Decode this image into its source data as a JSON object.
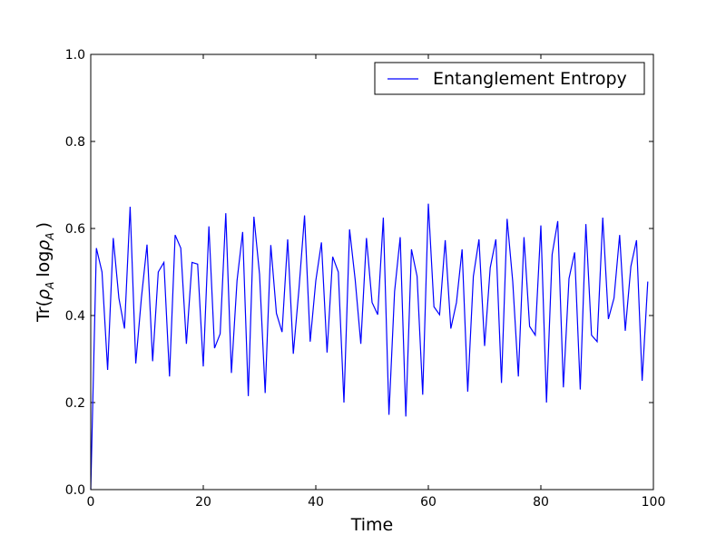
{
  "chart_data": {
    "type": "line",
    "title": "",
    "xlabel": "Time",
    "ylabel": {
      "prefix": "Tr(",
      "rho": "ρ",
      "sub_a": "A",
      "log": "log",
      "rho2": "ρ",
      "sub_a2": "A",
      "suffix": ")"
    },
    "xlim": [
      0,
      100
    ],
    "ylim": [
      0,
      1.0
    ],
    "xticks": [
      0,
      20,
      40,
      60,
      80,
      100
    ],
    "xtick_labels": [
      "0",
      "20",
      "40",
      "60",
      "80",
      "100"
    ],
    "yticks": [
      0.0,
      0.2,
      0.4,
      0.6,
      0.8,
      1.0
    ],
    "ytick_labels": [
      "0.0",
      "0.2",
      "0.4",
      "0.6",
      "0.8",
      "1.0"
    ],
    "grid": false,
    "legend_position": "top-right",
    "series": [
      {
        "name": "Entanglement Entropy",
        "color": "#0000ff",
        "x": [
          0,
          1,
          2,
          3,
          4,
          5,
          6,
          7,
          8,
          9,
          10,
          11,
          12,
          13,
          14,
          15,
          16,
          17,
          18,
          19,
          20,
          21,
          22,
          23,
          24,
          25,
          26,
          27,
          28,
          29,
          30,
          31,
          32,
          33,
          34,
          35,
          36,
          37,
          38,
          39,
          40,
          41,
          42,
          43,
          44,
          45,
          46,
          47,
          48,
          49,
          50,
          51,
          52,
          53,
          54,
          55,
          56,
          57,
          58,
          59,
          60,
          61,
          62,
          63,
          64,
          65,
          66,
          67,
          68,
          69,
          70,
          71,
          72,
          73,
          74,
          75,
          76,
          77,
          78,
          79,
          80,
          81,
          82,
          83,
          84,
          85,
          86,
          87,
          88,
          89,
          90,
          91,
          92,
          93,
          94,
          95,
          96,
          97,
          98,
          99
        ],
        "values": [
          0.0,
          0.555,
          0.5,
          0.275,
          0.578,
          0.44,
          0.37,
          0.65,
          0.29,
          0.44,
          0.563,
          0.295,
          0.5,
          0.522,
          0.26,
          0.585,
          0.555,
          0.335,
          0.522,
          0.518,
          0.283,
          0.605,
          0.325,
          0.358,
          0.635,
          0.268,
          0.48,
          0.592,
          0.215,
          0.627,
          0.495,
          0.222,
          0.562,
          0.405,
          0.362,
          0.575,
          0.312,
          0.46,
          0.63,
          0.34,
          0.48,
          0.568,
          0.315,
          0.535,
          0.5,
          0.2,
          0.598,
          0.482,
          0.335,
          0.578,
          0.43,
          0.402,
          0.625,
          0.172,
          0.455,
          0.58,
          0.168,
          0.552,
          0.49,
          0.218,
          0.657,
          0.42,
          0.402,
          0.573,
          0.37,
          0.43,
          0.552,
          0.225,
          0.49,
          0.575,
          0.33,
          0.51,
          0.575,
          0.245,
          0.622,
          0.478,
          0.26,
          0.58,
          0.375,
          0.355,
          0.607,
          0.2,
          0.54,
          0.617,
          0.235,
          0.485,
          0.545,
          0.23,
          0.61,
          0.355,
          0.34,
          0.625,
          0.392,
          0.44,
          0.585,
          0.365,
          0.513,
          0.573,
          0.25,
          0.478
        ]
      }
    ]
  }
}
